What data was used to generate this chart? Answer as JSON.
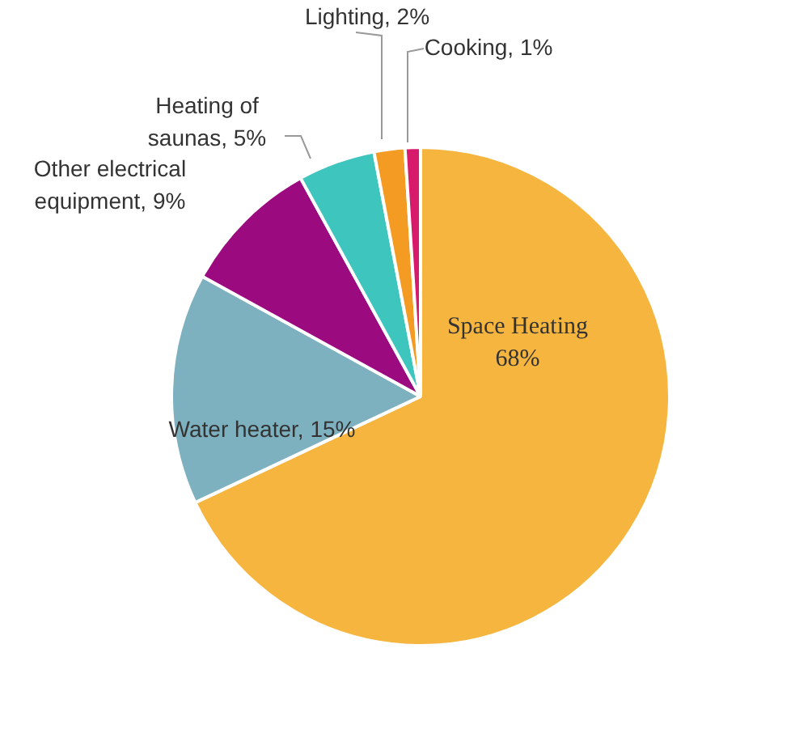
{
  "chart_data": {
    "type": "pie",
    "categories": [
      "Space Heating",
      "Water heater",
      "Other electrical equipment",
      "Heating of saunas",
      "Lighting",
      "Cooking"
    ],
    "values": [
      68,
      15,
      9,
      5,
      2,
      1
    ],
    "colors": [
      "#f5b53f",
      "#7eb1bf",
      "#9c0a7f",
      "#3ec5bd",
      "#f39b22",
      "#d81a6c"
    ],
    "value_labels": [
      "68%",
      "15%",
      "9%",
      "5%",
      "2%",
      "1%"
    ],
    "legend": false
  }
}
